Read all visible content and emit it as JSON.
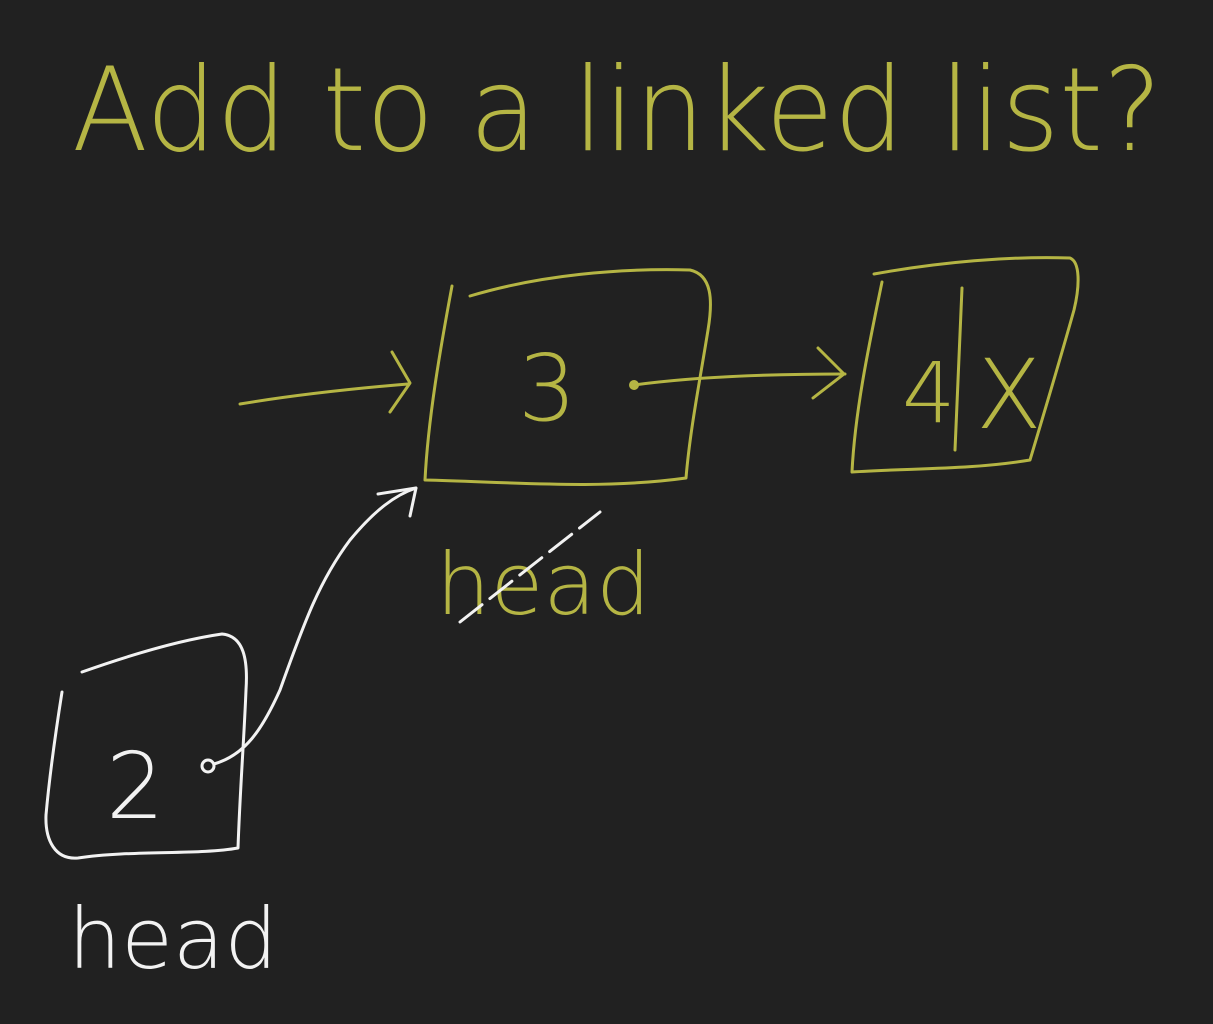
{
  "title": "Add to a linked list?",
  "colors": {
    "background": "#212121",
    "existing": "#b5b544",
    "added": "#f2f2f2"
  },
  "nodes": [
    {
      "value": "3",
      "pointer": ""
    },
    {
      "value": "4",
      "pointer": "X"
    },
    {
      "value": "2",
      "pointer": ""
    }
  ],
  "labels": {
    "old_head": "head",
    "new_head": "head"
  }
}
